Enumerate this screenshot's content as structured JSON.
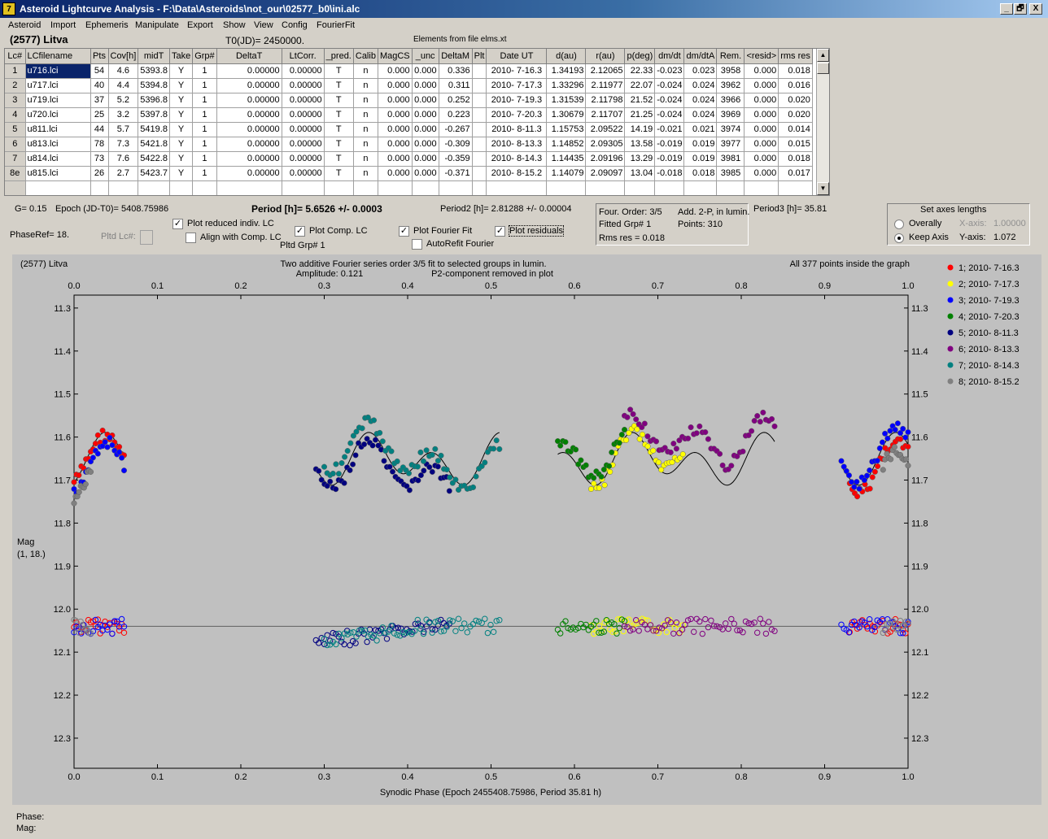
{
  "window": {
    "title": "Asteroid Lightcurve Analysis - F:\\Data\\Asteroids\\not_our\\02577_b0\\ini.alc",
    "controls": [
      "_",
      "🗗",
      "X"
    ]
  },
  "menu": [
    "Asteroid",
    "Import",
    "Ephemeris",
    "Manipulate",
    "Export",
    "Show",
    "View",
    "Config",
    "FourierFit"
  ],
  "header": {
    "asteroid": "(2577) Litva",
    "t0": "T0(JD)= 2450000.",
    "elements": "Elements from file elms.xt"
  },
  "grid": {
    "columns": [
      "Lc#",
      "LCfilename",
      "Pts",
      "Cov[h]",
      "midT",
      "Take",
      "Grp#",
      "DeltaT",
      "LtCorr.",
      "_pred.",
      "Calib",
      "MagCS",
      "_unc",
      "DeltaM",
      "Plt",
      "Date UT",
      "d(au)",
      "r(au)",
      "p(deg)",
      "dm/dt",
      "dm/dtA",
      "Rem.",
      "<resid>",
      "rms res"
    ],
    "rows": [
      [
        "1",
        "u716.lci",
        "54",
        "4.6",
        "5393.8",
        "Y",
        "1",
        "0.00000",
        "0.00000",
        "T",
        "n",
        "0.000",
        "0.000",
        "0.336",
        "",
        "2010- 7-16.3",
        "1.34193",
        "2.12065",
        "22.33",
        "-0.023",
        "0.023",
        "3958",
        "0.000",
        "0.018"
      ],
      [
        "2",
        "u717.lci",
        "40",
        "4.4",
        "5394.8",
        "Y",
        "1",
        "0.00000",
        "0.00000",
        "T",
        "n",
        "0.000",
        "0.000",
        "0.311",
        "",
        "2010- 7-17.3",
        "1.33296",
        "2.11977",
        "22.07",
        "-0.024",
        "0.024",
        "3962",
        "0.000",
        "0.016"
      ],
      [
        "3",
        "u719.lci",
        "37",
        "5.2",
        "5396.8",
        "Y",
        "1",
        "0.00000",
        "0.00000",
        "T",
        "n",
        "0.000",
        "0.000",
        "0.252",
        "",
        "2010- 7-19.3",
        "1.31539",
        "2.11798",
        "21.52",
        "-0.024",
        "0.024",
        "3966",
        "0.000",
        "0.020"
      ],
      [
        "4",
        "u720.lci",
        "25",
        "3.2",
        "5397.8",
        "Y",
        "1",
        "0.00000",
        "0.00000",
        "T",
        "n",
        "0.000",
        "0.000",
        "0.223",
        "",
        "2010- 7-20.3",
        "1.30679",
        "2.11707",
        "21.25",
        "-0.024",
        "0.024",
        "3969",
        "0.000",
        "0.020"
      ],
      [
        "5",
        "u811.lci",
        "44",
        "5.7",
        "5419.8",
        "Y",
        "1",
        "0.00000",
        "0.00000",
        "T",
        "n",
        "0.000",
        "0.000",
        "-0.267",
        "",
        "2010- 8-11.3",
        "1.15753",
        "2.09522",
        "14.19",
        "-0.021",
        "0.021",
        "3974",
        "0.000",
        "0.014"
      ],
      [
        "6",
        "u813.lci",
        "78",
        "7.3",
        "5421.8",
        "Y",
        "1",
        "0.00000",
        "0.00000",
        "T",
        "n",
        "0.000",
        "0.000",
        "-0.309",
        "",
        "2010- 8-13.3",
        "1.14852",
        "2.09305",
        "13.58",
        "-0.019",
        "0.019",
        "3977",
        "0.000",
        "0.015"
      ],
      [
        "7",
        "u814.lci",
        "73",
        "7.6",
        "5422.8",
        "Y",
        "1",
        "0.00000",
        "0.00000",
        "T",
        "n",
        "0.000",
        "0.000",
        "-0.359",
        "",
        "2010- 8-14.3",
        "1.14435",
        "2.09196",
        "13.29",
        "-0.019",
        "0.019",
        "3981",
        "0.000",
        "0.018"
      ],
      [
        "8e",
        "u815.lci",
        "26",
        "2.7",
        "5423.7",
        "Y",
        "1",
        "0.00000",
        "0.00000",
        "T",
        "n",
        "0.000",
        "0.000",
        "-0.371",
        "",
        "2010- 8-15.2",
        "1.14079",
        "2.09097",
        "13.04",
        "-0.018",
        "0.018",
        "3985",
        "0.000",
        "0.017"
      ]
    ]
  },
  "info": {
    "g": "G= 0.15",
    "epoch": "Epoch (JD-T0)= 5408.75986",
    "period": "Period [h]= 5.6526 +/- 0.0003",
    "period2": "Period2 [h]= 2.81288 +/- 0.00004",
    "period3": "Period3 [h]= 35.81",
    "phase_ref": "PhaseRef= 18.",
    "pltd_lc": "Pltd Lc#:",
    "pltd_grp": "Pltd Grp#  1"
  },
  "checkboxes": {
    "plot_reduced": {
      "label": "Plot reduced indiv. LC",
      "checked": "✓"
    },
    "align_comp": {
      "label": "Align with Comp. LC",
      "checked": ""
    },
    "plot_comp": {
      "label": "Plot Comp. LC",
      "checked": "✓"
    },
    "plot_fourier": {
      "label": "Plot Fourier Fit",
      "checked": "✓"
    },
    "autorefit": {
      "label": "AutoRefit Fourier",
      "checked": ""
    },
    "plot_residuals": {
      "label": "Plot residuals",
      "checked": "✓"
    }
  },
  "fourier_panel": {
    "order": "Four. Order:  3/5",
    "fitted": "Fitted Grp# 1",
    "rms": "Rms res      = 0.018",
    "add2p": "Add. 2-P, in lumin.",
    "points": "Points: 310"
  },
  "axes_panel": {
    "title": "Set axes lengths",
    "overally": "Overally",
    "keep_axis": "Keep Axis",
    "x_axis_label": "X-axis:",
    "x_axis_value": "1.00000",
    "y_axis_label": "Y-axis:",
    "y_axis_value": "1.072"
  },
  "status": {
    "phase": "Phase:",
    "mag": "Mag:"
  },
  "chart_data": {
    "type": "scatter",
    "title_left": "(2577) Litva",
    "title_center_1": "Two additive Fourier series order 3/5 fit to selected groups in lumin.",
    "title_center_2": "Amplitude: 0.121",
    "title_center_3": "P2-component removed in plot",
    "title_right": "All 377 points inside the graph",
    "xlabel": "Synodic Phase (Epoch 2455408.75986, Period 35.81 h)",
    "ylabel": "Mag",
    "ylabel2": "(1, 18.)",
    "xlim": [
      0.0,
      1.0
    ],
    "ylim": [
      11.27,
      12.37
    ],
    "x_ticks": [
      "0.0",
      "0.1",
      "0.2",
      "0.3",
      "0.4",
      "0.5",
      "0.6",
      "0.7",
      "0.8",
      "0.9",
      "1.0"
    ],
    "y_ticks": [
      "11.3",
      "11.4",
      "11.5",
      "11.6",
      "11.7",
      "11.8",
      "11.9",
      "12.0",
      "12.1",
      "12.2",
      "12.3"
    ],
    "residual_zero": 12.04,
    "legend_position": "right",
    "series": [
      {
        "name": "1; 2010- 7-16.3",
        "color": "#ff0000",
        "ranges": [
          [
            0.0,
            0.06
          ],
          [
            0.93,
            1.0
          ]
        ]
      },
      {
        "name": "2; 2010- 7-17.3",
        "color": "#ffff00",
        "ranges": [
          [
            0.62,
            0.73
          ]
        ]
      },
      {
        "name": "3; 2010- 7-19.3",
        "color": "#0000ff",
        "ranges": [
          [
            0.0,
            0.06
          ],
          [
            0.92,
            1.0
          ]
        ]
      },
      {
        "name": "4; 2010- 7-20.3",
        "color": "#008000",
        "ranges": [
          [
            0.58,
            0.66
          ]
        ]
      },
      {
        "name": "5; 2010- 8-11.3",
        "color": "#000080",
        "ranges": [
          [
            0.29,
            0.45
          ]
        ]
      },
      {
        "name": "6; 2010- 8-13.3",
        "color": "#800080",
        "ranges": [
          [
            0.66,
            0.84
          ]
        ]
      },
      {
        "name": "7; 2010- 8-14.3",
        "color": "#008080",
        "ranges": [
          [
            0.3,
            0.51
          ]
        ]
      },
      {
        "name": "8; 2010- 8-15.2",
        "color": "#808080",
        "ranges": [
          [
            0.0,
            0.02
          ],
          [
            0.97,
            1.0
          ]
        ]
      }
    ],
    "fit_segments": [
      [
        0.0,
        0.06
      ],
      [
        0.29,
        0.51
      ],
      [
        0.58,
        0.84
      ],
      [
        0.92,
        1.0
      ]
    ]
  }
}
